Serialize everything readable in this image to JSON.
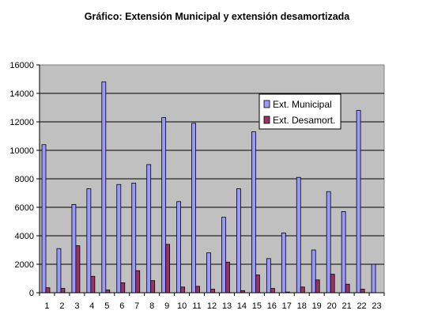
{
  "chart_data": {
    "type": "bar",
    "title": "Gráfico: Extensión Municipal y extensión desamortizada",
    "xlabel": "",
    "ylabel": "",
    "categories": [
      "1",
      "2",
      "3",
      "4",
      "5",
      "6",
      "7",
      "8",
      "9",
      "10",
      "11",
      "12",
      "13",
      "14",
      "15",
      "16",
      "17",
      "18",
      "19",
      "20",
      "21",
      "22",
      "23"
    ],
    "series": [
      {
        "name": "Ext. Municipal",
        "color": "#9999ff",
        "values": [
          10400,
          3100,
          6200,
          7300,
          14800,
          7600,
          7700,
          9000,
          12300,
          6400,
          11900,
          2800,
          5300,
          7300,
          11300,
          2400,
          4200,
          8100,
          3000,
          7100,
          5700,
          12800,
          2000
        ]
      },
      {
        "name": "Ext. Desamort.",
        "color": "#993366",
        "values": [
          350,
          300,
          3300,
          1150,
          200,
          700,
          1550,
          850,
          3400,
          400,
          450,
          250,
          2150,
          150,
          1250,
          300,
          50,
          400,
          900,
          1300,
          600,
          250,
          0
        ]
      }
    ],
    "ylim": [
      0,
      16000
    ],
    "yticks": [
      0,
      2000,
      4000,
      6000,
      8000,
      10000,
      12000,
      14000,
      16000
    ],
    "grid": true,
    "plot_background": "#c0c0c0",
    "legend_position": "right"
  }
}
